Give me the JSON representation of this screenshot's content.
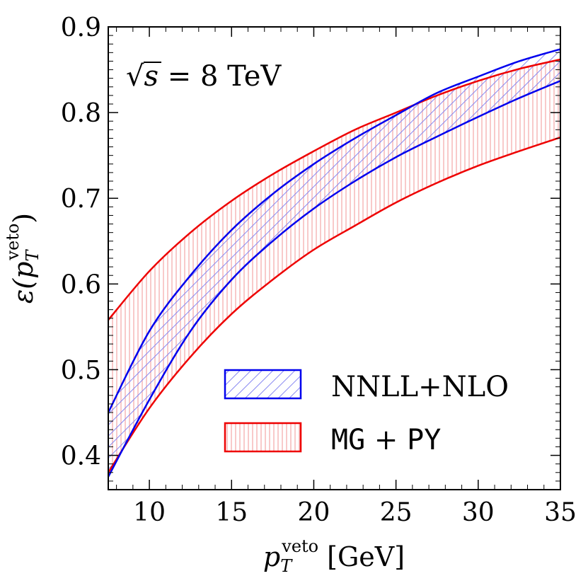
{
  "chart_data": {
    "type": "area",
    "title": "",
    "xlabel": "p_T^veto [GeV]",
    "xlabel_parts": {
      "symbol": "p",
      "subscript": "T",
      "superscript": "veto",
      "unit": "[GeV]"
    },
    "ylabel": "ε(p_T^veto)",
    "ylabel_parts": {
      "symbol": "ε(p",
      "subscript": "T",
      "superscript": "veto",
      "close": ")"
    },
    "xlim": [
      7.5,
      35
    ],
    "ylim": [
      0.36,
      0.9
    ],
    "xticks": [
      10,
      15,
      20,
      25,
      30,
      35
    ],
    "yticks": [
      0.4,
      0.5,
      0.6,
      0.7,
      0.8,
      0.9
    ],
    "xtick_labels": [
      "10",
      "15",
      "20",
      "25",
      "30",
      "35"
    ],
    "ytick_labels": [
      "0.4",
      "0.5",
      "0.6",
      "0.7",
      "0.8",
      "0.9"
    ],
    "grid": false,
    "annotation": {
      "sqrt": "√",
      "s": "s",
      "rest": " = 8 TeV"
    },
    "legend": {
      "position": "lower-right",
      "entries": [
        {
          "label": "NNLL+NLO",
          "color": "#0000ee",
          "hatch": "diagonal"
        },
        {
          "label_a": "MG",
          "label_op": " + ",
          "label_b": "PY",
          "color": "#ee0000",
          "hatch": "vertical"
        }
      ]
    },
    "series": [
      {
        "name": "NNLL+NLO",
        "color": "#0000ee",
        "hatch": "diagonal",
        "x": [
          7.5,
          10,
          12.5,
          15,
          17.5,
          20,
          22.5,
          25,
          27.5,
          30,
          32.5,
          35
        ],
        "upper": [
          0.45,
          0.545,
          0.61,
          0.663,
          0.705,
          0.74,
          0.77,
          0.797,
          0.823,
          0.842,
          0.86,
          0.874
        ],
        "lower": [
          0.375,
          0.465,
          0.545,
          0.605,
          0.65,
          0.688,
          0.72,
          0.748,
          0.772,
          0.795,
          0.817,
          0.837
        ]
      },
      {
        "name": "MG + PY",
        "color": "#ee0000",
        "hatch": "vertical",
        "x": [
          7.5,
          10,
          12.5,
          15,
          17.5,
          20,
          22.5,
          25,
          27.5,
          30,
          32.5,
          35
        ],
        "upper": [
          0.558,
          0.615,
          0.66,
          0.697,
          0.728,
          0.755,
          0.78,
          0.8,
          0.82,
          0.837,
          0.851,
          0.862
        ],
        "lower": [
          0.38,
          0.455,
          0.515,
          0.565,
          0.605,
          0.64,
          0.668,
          0.695,
          0.718,
          0.738,
          0.755,
          0.771
        ]
      }
    ]
  }
}
